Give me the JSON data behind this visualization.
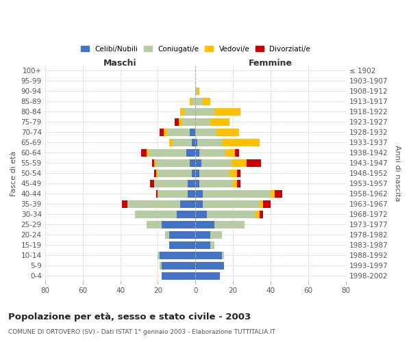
{
  "age_groups": [
    "100+",
    "95-99",
    "90-94",
    "85-89",
    "80-84",
    "75-79",
    "70-74",
    "65-69",
    "60-64",
    "55-59",
    "50-54",
    "45-49",
    "40-44",
    "35-39",
    "30-34",
    "25-29",
    "20-24",
    "15-19",
    "10-14",
    "5-9",
    "0-4"
  ],
  "birth_years": [
    "≤ 1902",
    "1903-1907",
    "1908-1912",
    "1913-1917",
    "1918-1922",
    "1923-1927",
    "1928-1932",
    "1933-1937",
    "1938-1942",
    "1943-1947",
    "1948-1952",
    "1953-1957",
    "1958-1962",
    "1963-1967",
    "1968-1972",
    "1973-1977",
    "1978-1982",
    "1983-1987",
    "1988-1992",
    "1993-1997",
    "1998-2002"
  ],
  "maschi": {
    "celibi": [
      0,
      0,
      0,
      0,
      0,
      0,
      3,
      2,
      5,
      3,
      2,
      4,
      4,
      8,
      10,
      18,
      14,
      14,
      19,
      18,
      18
    ],
    "coniugati": [
      0,
      0,
      0,
      2,
      6,
      7,
      12,
      10,
      20,
      18,
      18,
      18,
      16,
      28,
      22,
      8,
      2,
      0,
      1,
      1,
      0
    ],
    "vedovi": [
      0,
      0,
      0,
      1,
      2,
      2,
      2,
      2,
      1,
      1,
      1,
      0,
      0,
      0,
      0,
      0,
      0,
      0,
      0,
      0,
      0
    ],
    "divorziati": [
      0,
      0,
      0,
      0,
      0,
      2,
      2,
      0,
      3,
      1,
      1,
      2,
      1,
      3,
      0,
      0,
      0,
      0,
      0,
      0,
      0
    ]
  },
  "femmine": {
    "nubili": [
      0,
      0,
      0,
      0,
      0,
      0,
      0,
      1,
      2,
      3,
      2,
      2,
      4,
      4,
      6,
      10,
      8,
      8,
      14,
      15,
      13
    ],
    "coniugate": [
      0,
      0,
      1,
      4,
      10,
      8,
      11,
      13,
      14,
      16,
      16,
      18,
      36,
      30,
      26,
      16,
      6,
      2,
      1,
      0,
      0
    ],
    "vedove": [
      0,
      0,
      1,
      4,
      14,
      10,
      12,
      20,
      5,
      8,
      4,
      2,
      2,
      2,
      2,
      0,
      0,
      0,
      0,
      0,
      0
    ],
    "divorziate": [
      0,
      0,
      0,
      0,
      0,
      0,
      0,
      0,
      2,
      8,
      2,
      2,
      4,
      4,
      2,
      0,
      0,
      0,
      0,
      0,
      0
    ]
  },
  "colors": {
    "celibi": "#4472c4",
    "coniugati": "#b8cca4",
    "vedovi": "#ffc000",
    "divorziati": "#cc0000"
  },
  "xlim": 80,
  "title": "Popolazione per età, sesso e stato civile - 2003",
  "subtitle": "COMUNE DI ORTOVERO (SV) - Dati ISTAT 1° gennaio 2003 - Elaborazione TUTTITALIA.IT",
  "ylabel_left": "Fasce di età",
  "ylabel_right": "Anni di nascita",
  "xlabel_maschi": "Maschi",
  "xlabel_femmine": "Femmine",
  "legend_labels": [
    "Celibi/Nubili",
    "Coniugati/e",
    "Vedovi/e",
    "Divorziati/e"
  ],
  "bg_color": "#ffffff",
  "grid_color": "#cccccc"
}
